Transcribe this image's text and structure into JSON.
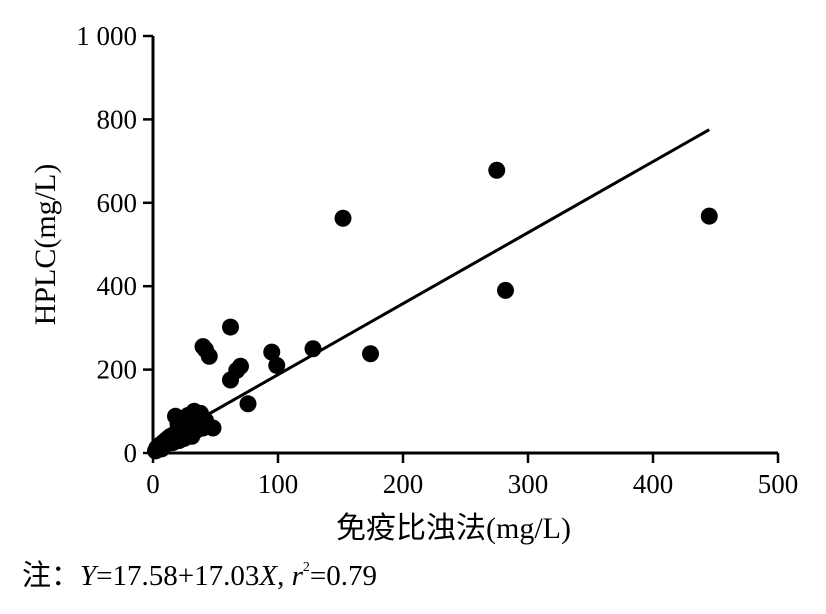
{
  "chart_data": {
    "type": "scatter",
    "xlabel": "免疫比浊法(mg/L)",
    "ylabel": "HPLC(mg/L)",
    "xlim": [
      0,
      500
    ],
    "ylim": [
      0,
      1000
    ],
    "xticks": [
      "0",
      "100",
      "200",
      "300",
      "400",
      "500"
    ],
    "yticks": [
      "0",
      "200",
      "400",
      "600",
      "800",
      "1 000"
    ],
    "grid": false,
    "points": [
      [
        2,
        5
      ],
      [
        3,
        12
      ],
      [
        4,
        8
      ],
      [
        5,
        15
      ],
      [
        6,
        20
      ],
      [
        7,
        10
      ],
      [
        8,
        25
      ],
      [
        9,
        18
      ],
      [
        10,
        30
      ],
      [
        11,
        22
      ],
      [
        12,
        35
      ],
      [
        13,
        28
      ],
      [
        14,
        40
      ],
      [
        15,
        32
      ],
      [
        16,
        25
      ],
      [
        17,
        45
      ],
      [
        18,
        38
      ],
      [
        19,
        50
      ],
      [
        20,
        42
      ],
      [
        21,
        30
      ],
      [
        22,
        55
      ],
      [
        23,
        48
      ],
      [
        24,
        60
      ],
      [
        25,
        35
      ],
      [
        26,
        52
      ],
      [
        27,
        65
      ],
      [
        28,
        45
      ],
      [
        29,
        70
      ],
      [
        30,
        58
      ],
      [
        31,
        40
      ],
      [
        32,
        75
      ],
      [
        33,
        62
      ],
      [
        34,
        80
      ],
      [
        35,
        55
      ],
      [
        36,
        85
      ],
      [
        37,
        68
      ],
      [
        38,
        95
      ],
      [
        39,
        72
      ],
      [
        40,
        60
      ],
      [
        42,
        78
      ],
      [
        15,
        30
      ],
      [
        18,
        88
      ],
      [
        20,
        70
      ],
      [
        25,
        80
      ],
      [
        28,
        90
      ],
      [
        30,
        80
      ],
      [
        33,
        100
      ],
      [
        40,
        255
      ],
      [
        42,
        248
      ],
      [
        45,
        232
      ],
      [
        48,
        60
      ],
      [
        62,
        302
      ],
      [
        62,
        175
      ],
      [
        67,
        198
      ],
      [
        70,
        208
      ],
      [
        76,
        118
      ],
      [
        95,
        242
      ],
      [
        99,
        210
      ],
      [
        128,
        250
      ],
      [
        152,
        563
      ],
      [
        174,
        238
      ],
      [
        275,
        678
      ],
      [
        282,
        390
      ],
      [
        445,
        568
      ]
    ],
    "fit_line": {
      "intercept": 17.58,
      "slope": 17.03,
      "x_range": [
        0,
        445
      ]
    },
    "annotation": {
      "prefix": "注：",
      "y_var": "Y",
      "eq_mid": "=17.58+17.03",
      "x_var": "X",
      "sep": ", ",
      "r_var": "r",
      "r_exp": "2",
      "r_val": "=0.79"
    }
  }
}
